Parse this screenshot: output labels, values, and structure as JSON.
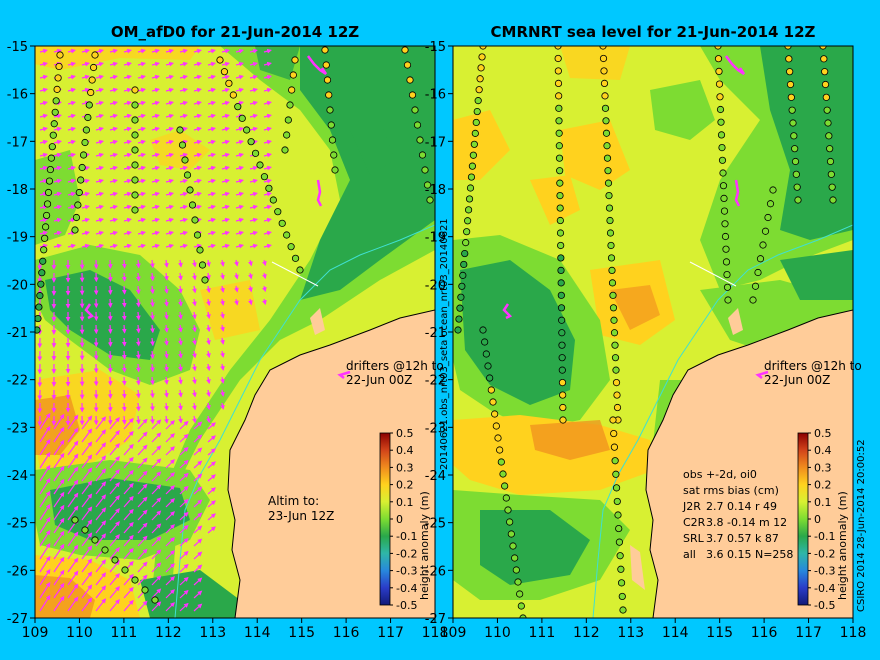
{
  "left_panel": {
    "title": "OM_afD0 for 21-Jun-2014 12Z",
    "annotation_drifters": [
      "drifters @12h to",
      "22-Jun 00Z"
    ],
    "annotation_altim": [
      "Altim to:",
      "23-Jun 12Z"
    ],
    "colorbar_label": "height anomaly (m)"
  },
  "right_panel": {
    "title": "CMRNRT sea level  for 21-Jun-2014 12Z",
    "annotation_drifters": [
      "drifters @12h to",
      "22-Jun 00Z"
    ],
    "side_label": "20140621.obs_nrt03_seta    ocean_nrt03_20140621",
    "stats": {
      "header": "obs +-2d, oi0",
      "subheader": "sat rms bias (cm)",
      "rows": [
        {
          "sat": "J2R",
          "values": "2.7  0.14  r 49"
        },
        {
          "sat": "C2R",
          "values": "3.8 -0.14 m 12"
        },
        {
          "sat": "SRL",
          "values": "3.7  0.57  k 87"
        },
        {
          "sat": "all",
          "values": "3.6  0.15  N=258"
        }
      ]
    },
    "colorbar_label": "height anomaly (m)"
  },
  "credit": "CSIRO 2014   28-Jun-2014 20:00:52",
  "axes": {
    "x_ticks": [
      "109",
      "110",
      "111",
      "112",
      "113",
      "114",
      "115",
      "116",
      "117",
      "118"
    ],
    "y_ticks": [
      "-15",
      "-16",
      "-17",
      "-18",
      "-19",
      "-20",
      "-21",
      "-22",
      "-23",
      "-24",
      "-25",
      "-26",
      "-27"
    ],
    "x_range": [
      109,
      118
    ],
    "y_range": [
      -27,
      -15
    ]
  },
  "colorbar": {
    "ticks": [
      "0.5",
      "0.4",
      "0.3",
      "0.2",
      "0.1",
      "0",
      "-0.1",
      "-0.2",
      "-0.3",
      "-0.4",
      "-0.5"
    ],
    "range": [
      -0.5,
      0.5
    ],
    "colors": [
      "#8b0000",
      "#d2441a",
      "#f08c1e",
      "#ffd21e",
      "#d8f032",
      "#7ddc32",
      "#2aa84a",
      "#2fb6a8",
      "#2888dc",
      "#2a3cc8",
      "#121a78"
    ]
  },
  "colors": {
    "background": "#00c8ff",
    "land": "#ffcc99",
    "vectors": "#ff33ff",
    "drifters": "#ff33ff",
    "coast_current": "#40e0d0"
  }
}
